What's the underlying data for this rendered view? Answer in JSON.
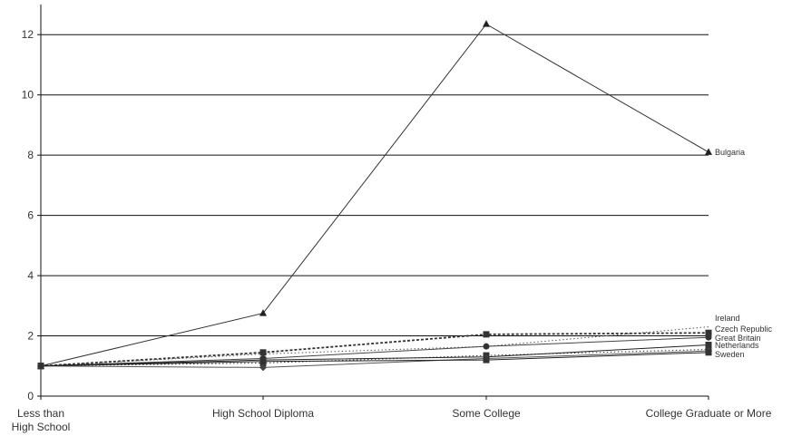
{
  "chart_data": {
    "type": "line",
    "title": "",
    "xlabel": "",
    "ylabel": "",
    "categories": [
      [
        "Less than",
        "High School"
      ],
      [
        "High School Diploma"
      ],
      [
        "Some College"
      ],
      [
        "College Graduate or More"
      ]
    ],
    "ylim": [
      0,
      13
    ],
    "yticks": [
      0,
      2,
      4,
      6,
      8,
      10,
      12
    ],
    "grid": "horizontal",
    "legend": "none",
    "series": [
      {
        "name": "Bulgaria",
        "values": [
          1,
          2.75,
          12.35,
          8.1
        ],
        "marker": "triangle",
        "dash": "solid",
        "color": "#333333"
      },
      {
        "name": "Ireland",
        "values": [
          1,
          1.4,
          1.65,
          2.3
        ],
        "marker": "none",
        "dash": "dotted",
        "color": "#555555"
      },
      {
        "name": "Czech Republic",
        "values": [
          1,
          1.45,
          2.05,
          2.1
        ],
        "marker": "square",
        "dash": "dashed",
        "color": "#333333"
      },
      {
        "name": "Great Britain",
        "values": [
          1,
          1.25,
          1.65,
          1.95
        ],
        "marker": "circle",
        "dash": "solid",
        "color": "#444444"
      },
      {
        "name": "",
        "values": [
          1,
          1.1,
          1.35,
          1.55
        ],
        "marker": "square",
        "dash": "dotted",
        "color": "#333333"
      },
      {
        "name": "Netherlands",
        "values": [
          1,
          1.2,
          1.3,
          1.7
        ],
        "marker": "square",
        "dash": "solid",
        "color": "#222222"
      },
      {
        "name": "",
        "values": [
          1,
          0.95,
          1.25,
          1.5
        ],
        "marker": "diamond",
        "dash": "solid",
        "color": "#555555"
      },
      {
        "name": "Sweden",
        "values": [
          1,
          1.15,
          1.2,
          1.45
        ],
        "marker": "square",
        "dash": "solid",
        "color": "#222222"
      }
    ],
    "end_labels": [
      "Bulgaria",
      "Ireland",
      "Czech Republic",
      "Great Britain",
      "Netherlands",
      "Sweden"
    ]
  }
}
